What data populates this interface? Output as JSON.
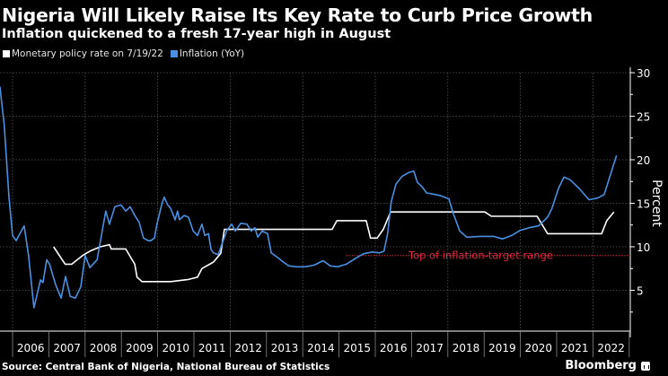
{
  "chart_data": {
    "type": "line",
    "title": "Nigeria Will Likely Raise Its Key Rate to Curb Price Growth",
    "subtitle": "Inflation quickened to a fresh 17-year high in August",
    "xlabel": "",
    "ylabel": "Percent",
    "xlim": [
      2005.65,
      2022.9
    ],
    "ylim": [
      0,
      30
    ],
    "y_ticks": [
      5,
      10,
      15,
      20,
      25,
      30
    ],
    "x_tick_labels": [
      "2006",
      "2007",
      "2008",
      "2009",
      "2010",
      "2011",
      "2012",
      "2013",
      "2014",
      "2015",
      "2016",
      "2017",
      "2018",
      "2019",
      "2020",
      "2021",
      "2022"
    ],
    "grid": true,
    "legend_position": "top-left",
    "colors": {
      "background": "#000000",
      "policy_rate": "#ffffff",
      "inflation": "#4a90e2",
      "reference": "#e0283c",
      "grid": "#555555"
    },
    "reference_line": {
      "value": 9,
      "label": "Top of inflation-target range",
      "x_start": 2015.2
    },
    "series": [
      {
        "name": "Monetary policy rate on 7/19/22",
        "points": [
          [
            2007.13,
            10
          ],
          [
            2007.45,
            8
          ],
          [
            2007.63,
            8
          ],
          [
            2007.93,
            9
          ],
          [
            2008.13,
            9.5
          ],
          [
            2008.42,
            10
          ],
          [
            2008.67,
            10.25
          ],
          [
            2008.72,
            9.75
          ],
          [
            2009.12,
            9.75
          ],
          [
            2009.37,
            8
          ],
          [
            2009.43,
            6.5
          ],
          [
            2009.57,
            6
          ],
          [
            2010.36,
            6
          ],
          [
            2010.85,
            6.25
          ],
          [
            2011.1,
            6.5
          ],
          [
            2011.22,
            7.5
          ],
          [
            2011.54,
            8.25
          ],
          [
            2011.74,
            9.25
          ],
          [
            2011.84,
            12
          ],
          [
            2014.81,
            12
          ],
          [
            2014.94,
            13
          ],
          [
            2015.75,
            13
          ],
          [
            2015.87,
            11
          ],
          [
            2016.05,
            11
          ],
          [
            2016.22,
            12
          ],
          [
            2016.42,
            14
          ],
          [
            2019.02,
            14
          ],
          [
            2019.2,
            13.5
          ],
          [
            2020.46,
            13.5
          ],
          [
            2020.75,
            11.5
          ],
          [
            2022.24,
            11.5
          ],
          [
            2022.38,
            13
          ],
          [
            2022.58,
            14
          ]
        ]
      },
      {
        "name": "Inflation (YoY)",
        "points": [
          [
            2005.65,
            28.4
          ],
          [
            2005.77,
            24
          ],
          [
            2005.9,
            15.7
          ],
          [
            2006.0,
            11.3
          ],
          [
            2006.1,
            10.7
          ],
          [
            2006.2,
            11.5
          ],
          [
            2006.32,
            12.4
          ],
          [
            2006.44,
            9
          ],
          [
            2006.59,
            3
          ],
          [
            2006.69,
            4.8
          ],
          [
            2006.77,
            6.2
          ],
          [
            2006.84,
            5.9
          ],
          [
            2006.94,
            8.5
          ],
          [
            2007.02,
            8
          ],
          [
            2007.19,
            5.6
          ],
          [
            2007.34,
            4.1
          ],
          [
            2007.46,
            6.6
          ],
          [
            2007.59,
            4.3
          ],
          [
            2007.73,
            4.1
          ],
          [
            2007.88,
            5.4
          ],
          [
            2008.0,
            9
          ],
          [
            2008.13,
            7.6
          ],
          [
            2008.33,
            8.5
          ],
          [
            2008.57,
            14.1
          ],
          [
            2008.67,
            12.6
          ],
          [
            2008.82,
            14.6
          ],
          [
            2008.99,
            14.8
          ],
          [
            2009.12,
            14.1
          ],
          [
            2009.24,
            14.6
          ],
          [
            2009.37,
            13.6
          ],
          [
            2009.49,
            12.8
          ],
          [
            2009.61,
            11
          ],
          [
            2009.74,
            10.7
          ],
          [
            2009.81,
            10.7
          ],
          [
            2009.91,
            11
          ],
          [
            2009.98,
            12.6
          ],
          [
            2010.11,
            14.8
          ],
          [
            2010.18,
            15.7
          ],
          [
            2010.28,
            14.8
          ],
          [
            2010.36,
            14.4
          ],
          [
            2010.48,
            13.1
          ],
          [
            2010.55,
            14.1
          ],
          [
            2010.6,
            13.1
          ],
          [
            2010.73,
            13.6
          ],
          [
            2010.85,
            13.4
          ],
          [
            2010.98,
            11.8
          ],
          [
            2011.1,
            11.3
          ],
          [
            2011.22,
            12.6
          ],
          [
            2011.3,
            11.3
          ],
          [
            2011.4,
            11.5
          ],
          [
            2011.47,
            9.7
          ],
          [
            2011.54,
            9.3
          ],
          [
            2011.67,
            9.1
          ],
          [
            2011.79,
            10.5
          ],
          [
            2011.91,
            11.9
          ],
          [
            2012.04,
            12.6
          ],
          [
            2012.14,
            11.8
          ],
          [
            2012.29,
            12.7
          ],
          [
            2012.46,
            12.6
          ],
          [
            2012.58,
            11.8
          ],
          [
            2012.68,
            12.2
          ],
          [
            2012.76,
            11.1
          ],
          [
            2012.88,
            11.8
          ],
          [
            2013.03,
            11.5
          ],
          [
            2013.13,
            9.3
          ],
          [
            2013.23,
            9
          ],
          [
            2013.33,
            8.7
          ],
          [
            2013.48,
            8.2
          ],
          [
            2013.62,
            7.8
          ],
          [
            2013.82,
            7.7
          ],
          [
            2014.07,
            7.7
          ],
          [
            2014.32,
            7.9
          ],
          [
            2014.56,
            8.4
          ],
          [
            2014.76,
            7.8
          ],
          [
            2014.96,
            7.7
          ],
          [
            2015.2,
            8
          ],
          [
            2015.43,
            8.6
          ],
          [
            2015.67,
            9.2
          ],
          [
            2015.92,
            9.4
          ],
          [
            2016.12,
            9.3
          ],
          [
            2016.24,
            9.5
          ],
          [
            2016.34,
            11.5
          ],
          [
            2016.44,
            15.2
          ],
          [
            2016.57,
            17.2
          ],
          [
            2016.74,
            18.1
          ],
          [
            2016.91,
            18.5
          ],
          [
            2017.06,
            18.7
          ],
          [
            2017.16,
            17.4
          ],
          [
            2017.29,
            16.9
          ],
          [
            2017.41,
            16.2
          ],
          [
            2017.78,
            15.9
          ],
          [
            2018.03,
            15.5
          ],
          [
            2018.15,
            13.8
          ],
          [
            2018.33,
            11.8
          ],
          [
            2018.52,
            11.1
          ],
          [
            2018.89,
            11.2
          ],
          [
            2019.26,
            11.2
          ],
          [
            2019.51,
            10.9
          ],
          [
            2019.76,
            11.3
          ],
          [
            2020.0,
            11.9
          ],
          [
            2020.25,
            12.2
          ],
          [
            2020.5,
            12.4
          ],
          [
            2020.75,
            13.4
          ],
          [
            2020.87,
            14.4
          ],
          [
            2021.05,
            16.7
          ],
          [
            2021.2,
            18
          ],
          [
            2021.37,
            17.7
          ],
          [
            2021.62,
            16.7
          ],
          [
            2021.89,
            15.4
          ],
          [
            2022.13,
            15.6
          ],
          [
            2022.31,
            16
          ],
          [
            2022.65,
            20.5
          ]
        ]
      }
    ]
  },
  "legend": {
    "items": [
      {
        "label": "Monetary policy rate on 7/19/22",
        "color": "#ffffff"
      },
      {
        "label": "Inflation (YoY)",
        "color": "#4a90e2"
      }
    ]
  },
  "footer": {
    "source": "Source: Central Bank of Nigeria, National Bureau of Statistics",
    "brand": "Bloomberg"
  }
}
